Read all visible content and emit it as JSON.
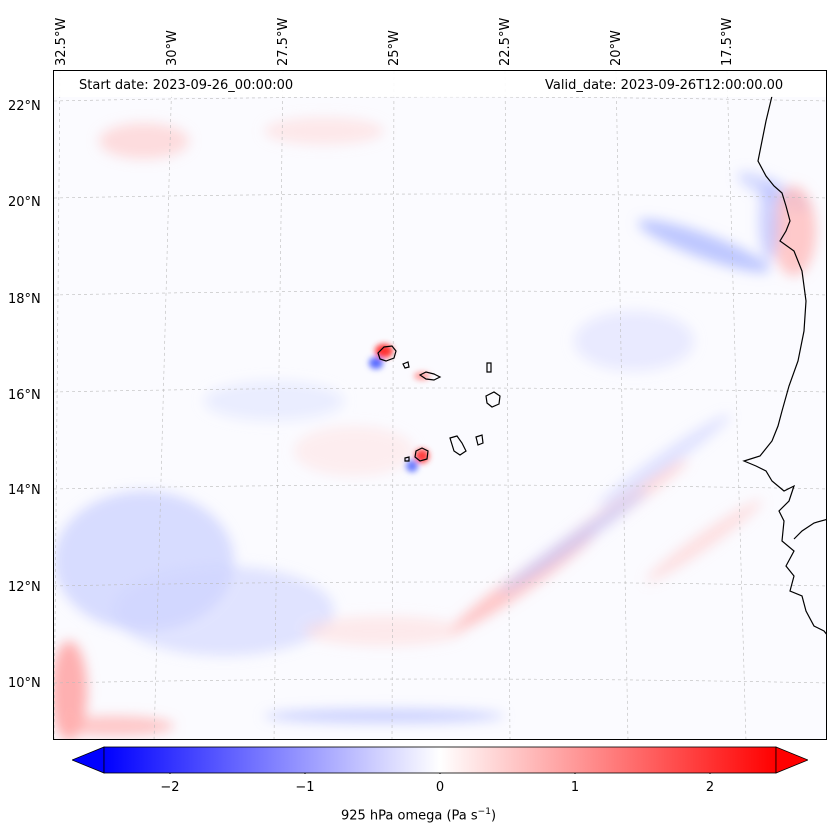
{
  "map": {
    "info_left": "Start date: 2023-09-26_00:00:00",
    "info_right": "Valid_date: 2023-09-26T12:00:00.00",
    "lon_labels": [
      "32.5°W",
      "30°W",
      "27.5°W",
      "25°W",
      "22.5°W",
      "20°W",
      "17.5°W"
    ],
    "lat_labels": [
      "22°N",
      "20°N",
      "18°N",
      "16°N",
      "14°N",
      "12°N",
      "10°N"
    ],
    "extent": {
      "lon_min": -33,
      "lon_max": -16.2,
      "lat_min": 8.8,
      "lat_max": 22.7
    },
    "variable": "925 hPa omega"
  },
  "colorbar": {
    "label_prefix": "925 hPa omega (Pa s",
    "label_exp": "−1",
    "label_suffix": ")",
    "ticks": [
      "−2",
      "−1",
      "0",
      "1",
      "2"
    ],
    "tick_values": [
      -2,
      -1,
      0,
      1,
      2
    ],
    "range": [
      -2.5,
      2.5
    ],
    "colors": {
      "min": "#0000ff",
      "mid": "#ffffff",
      "max": "#ff0000"
    },
    "extend": "both"
  }
}
